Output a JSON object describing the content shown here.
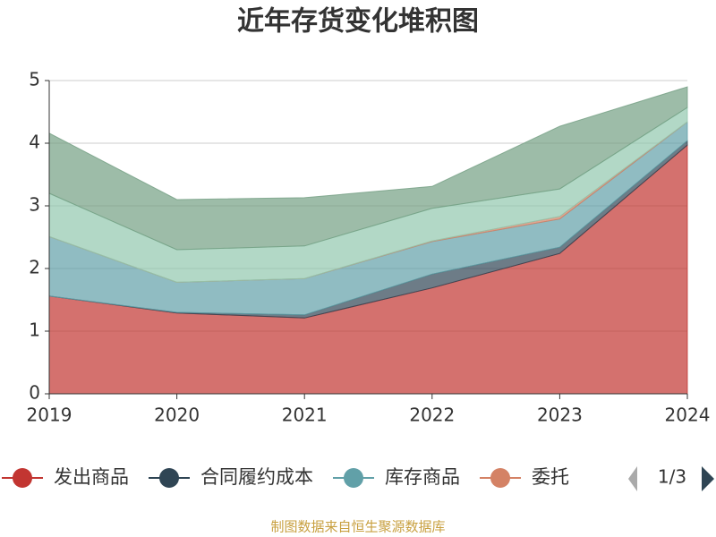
{
  "chart_data": {
    "type": "stacked_area",
    "title": "近年存货变化堆积图",
    "categories": [
      "2019",
      "2020",
      "2021",
      "2022",
      "2023",
      "2024"
    ],
    "series": [
      {
        "name": "发出商品",
        "color": "#c23531",
        "values": [
          1.56,
          1.29,
          1.21,
          1.69,
          2.24,
          3.97
        ]
      },
      {
        "name": "合同履约成本",
        "color": "#2f4554",
        "values": [
          0,
          0.01,
          0.05,
          0.22,
          0.1,
          0.07
        ]
      },
      {
        "name": "库存商品",
        "color": "#61a0a8",
        "values": [
          0.95,
          0.48,
          0.58,
          0.52,
          0.45,
          0.3
        ]
      },
      {
        "name": "委托",
        "color": "#d48265",
        "values": [
          0,
          0,
          0,
          0.01,
          0.04,
          0
        ]
      },
      {
        "color": "#91c7ae",
        "values": [
          0.69,
          0.52,
          0.52,
          0.52,
          0.44,
          0.23
        ]
      },
      {
        "color": "#749f83",
        "values": [
          0.96,
          0.8,
          0.77,
          0.35,
          1.0,
          0.33
        ]
      }
    ],
    "ylim": [
      0,
      5
    ],
    "yticks": [
      0,
      1,
      2,
      3,
      4,
      5
    ],
    "grid": true,
    "legend_page": "1/3",
    "source": "制图数据来自恒生聚源数据库"
  }
}
